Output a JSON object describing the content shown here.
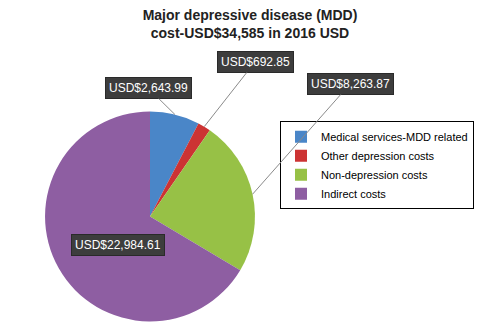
{
  "chart_data": {
    "type": "pie",
    "title": "Major depressive disease (MDD)\ncost-USD$34,585 in 2016 USD",
    "categories": [
      "Medical services-MDD related",
      "Other depression costs",
      "Non-depression costs",
      "Indirect costs"
    ],
    "values": [
      2643.99,
      692.85,
      8263.87,
      22984.61
    ],
    "value_labels": [
      "USD$2,643.99",
      "USD$692.85",
      "USD$8,263.87",
      "USD$22,984.61"
    ],
    "colors": [
      "#4a86c8",
      "#cc3333",
      "#97c146",
      "#8e5ea2"
    ],
    "data_labels": true,
    "legend": "right"
  }
}
